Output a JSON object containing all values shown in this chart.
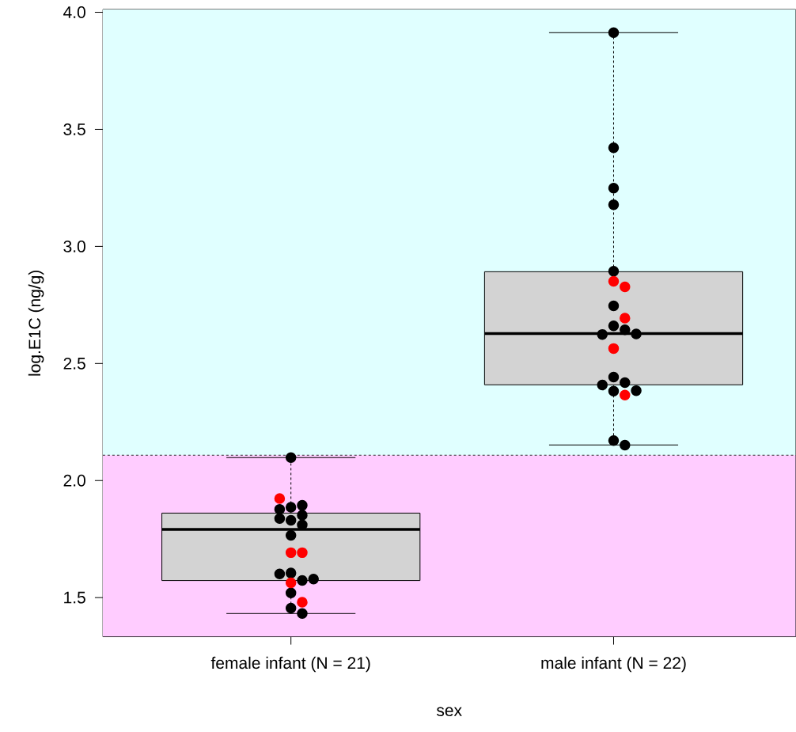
{
  "chart_data": {
    "type": "box",
    "xlabel": "sex",
    "ylabel": "log.E1C (ng/g)",
    "categories": [
      "female infant (N = 21)",
      "male infant (N = 22)"
    ],
    "boxes": [
      {
        "low": 1.432,
        "q1": 1.573,
        "median": 1.791,
        "q3": 1.861,
        "high": 2.098
      },
      {
        "low": 2.152,
        "q1": 2.409,
        "median": 2.628,
        "q3": 2.892,
        "high": 3.913
      }
    ],
    "series": [
      {
        "type": "scatter",
        "color": "#000000",
        "x": [
          "female infant (N = 21)",
          "female infant (N = 21)",
          "female infant (N = 21)",
          "female infant (N = 21)",
          "female infant (N = 21)",
          "female infant (N = 21)",
          "female infant (N = 21)",
          "female infant (N = 21)",
          "female infant (N = 21)",
          "female infant (N = 21)",
          "female infant (N = 21)",
          "female infant (N = 21)",
          "female infant (N = 21)",
          "female infant (N = 21)",
          "female infant (N = 21)",
          "female infant (N = 21)",
          "male infant (N = 22)",
          "male infant (N = 22)",
          "male infant (N = 22)",
          "male infant (N = 22)",
          "male infant (N = 22)",
          "male infant (N = 22)",
          "male infant (N = 22)",
          "male infant (N = 22)",
          "male infant (N = 22)",
          "male infant (N = 22)",
          "male infant (N = 22)",
          "male infant (N = 22)",
          "male infant (N = 22)",
          "male infant (N = 22)",
          "male infant (N = 22)",
          "male infant (N = 22)",
          "male infant (N = 22)"
        ],
        "values": [
          2.098,
          1.886,
          1.894,
          1.877,
          1.852,
          1.83,
          1.811,
          1.838,
          1.766,
          1.605,
          1.573,
          1.601,
          1.579,
          1.52,
          1.455,
          1.432,
          3.913,
          3.421,
          3.249,
          3.178,
          2.894,
          2.746,
          2.661,
          2.644,
          2.624,
          2.626,
          2.442,
          2.418,
          2.408,
          2.382,
          2.384,
          2.171,
          2.151
        ]
      },
      {
        "type": "scatter",
        "color": "#ff0000",
        "x": [
          "female infant (N = 21)",
          "female infant (N = 21)",
          "female infant (N = 21)",
          "female infant (N = 21)",
          "female infant (N = 21)",
          "male infant (N = 22)",
          "male infant (N = 22)",
          "male infant (N = 22)",
          "male infant (N = 22)",
          "male infant (N = 22)"
        ],
        "values": [
          1.923,
          1.692,
          1.692,
          1.563,
          1.48,
          2.851,
          2.827,
          2.694,
          2.564,
          2.365
        ]
      }
    ],
    "ylim": [
      1.333,
      4.012
    ],
    "yticks": [
      1.5,
      {
        "value": 2,
        "label": "2.0"
      },
      2.5,
      {
        "value": 3,
        "label": "3.0"
      },
      3.5,
      {
        "value": 4,
        "label": "4.0"
      }
    ],
    "ref_lines": [
      {
        "axis": "y",
        "value": 2.108,
        "line_style": "dashed",
        "color": "#000000"
      }
    ],
    "bands": [
      {
        "axis": "y",
        "from": 2.108,
        "to": 4.012,
        "color": "#e0ffff"
      },
      {
        "axis": "y",
        "from": 1.333,
        "to": 2.108,
        "color": "#ffccff"
      }
    ],
    "marker": "circle"
  }
}
